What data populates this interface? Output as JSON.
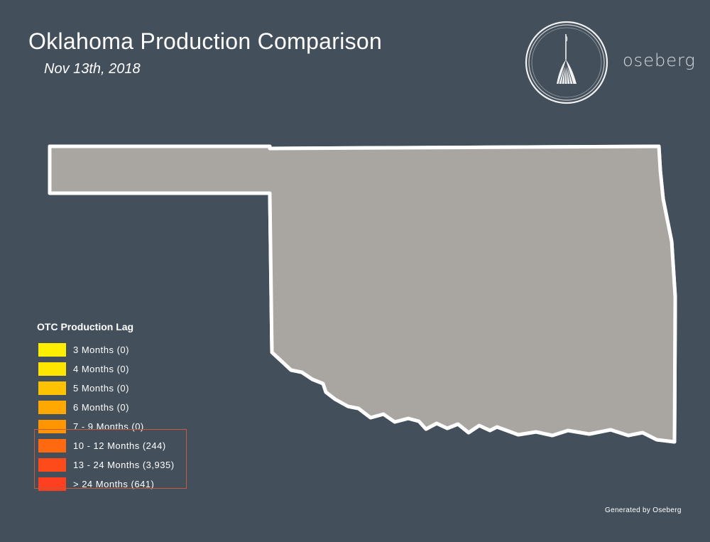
{
  "header": {
    "title": "Oklahoma Production Comparison",
    "date": "Nov 13th, 2018"
  },
  "brand": {
    "name": "oseberg",
    "logo_icon": "oseberg-ship-emblem"
  },
  "legend": {
    "title": "OTC Production Lag",
    "items": [
      {
        "label": "3 Months (0)",
        "color": "#ffee00",
        "count": 0
      },
      {
        "label": "4 Months (0)",
        "color": "#ffe600",
        "count": 0
      },
      {
        "label": "5 Months (0)",
        "color": "#ffc200",
        "count": 0
      },
      {
        "label": "6 Months (0)",
        "color": "#ffa800",
        "count": 0
      },
      {
        "label": "7 - 9 Months (0)",
        "color": "#ff9500",
        "count": 0
      },
      {
        "label": "10 - 12 Months (244)",
        "color": "#ff6a10",
        "count": 244
      },
      {
        "label": "13 - 24 Months (3,935)",
        "color": "#ff4a1a",
        "count": 3935
      },
      {
        "label": "> 24 Months (641)",
        "color": "#ff4020",
        "count": 641
      }
    ]
  },
  "map": {
    "state_fill": "#a9a6a2",
    "county_line": "#8d8a87",
    "outline": "#ffffff",
    "well_color": "#ff4a1a"
  },
  "footer": {
    "credit": "Generated by Oseberg"
  }
}
